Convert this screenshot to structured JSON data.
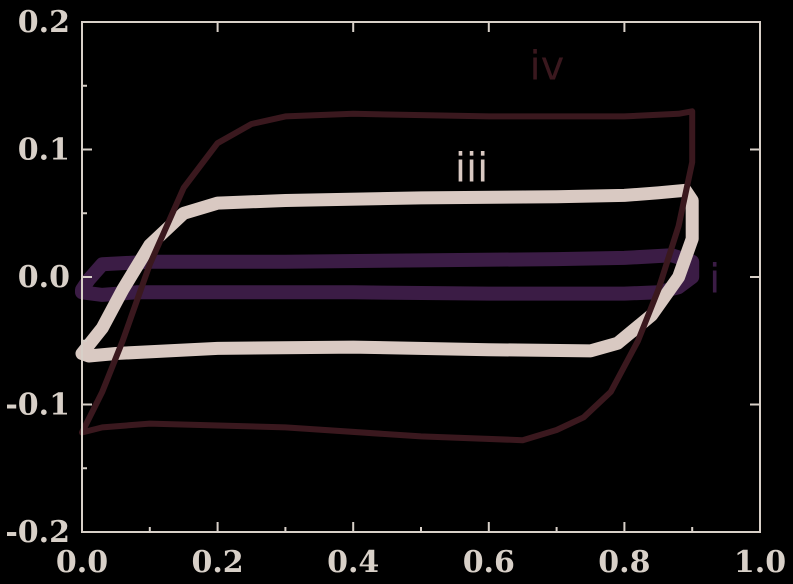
{
  "colors": {
    "background": "#000000",
    "axis": "#d8d0c8",
    "curve_i": "#3b1c45",
    "curve_ii": "#4a2060",
    "curve_iii": "#d9c9c2",
    "curve_iv": "#3a181e"
  },
  "chart_data": {
    "type": "line",
    "title": "",
    "xlabel": "",
    "ylabel": "",
    "xlim": [
      0.0,
      1.0
    ],
    "ylim": [
      -0.2,
      0.2
    ],
    "grid": false,
    "x_ticks": [
      "0.0",
      "0.2",
      "0.4",
      "0.6",
      "0.8",
      "1.0"
    ],
    "y_ticks": [
      "-0.2",
      "-0.1",
      "0.0",
      "0.1",
      "0.2"
    ],
    "annotations": [
      "i",
      "iii",
      "iv"
    ],
    "series": [
      {
        "name": "i",
        "color_key": "curve_i",
        "x": [
          0.0,
          0.01,
          0.03,
          0.1,
          0.3,
          0.5,
          0.7,
          0.8,
          0.87,
          0.9,
          0.9,
          0.88,
          0.85,
          0.8,
          0.6,
          0.4,
          0.2,
          0.08,
          0.03,
          0.0,
          0.0
        ],
        "y": [
          -0.01,
          -0.002,
          0.01,
          0.012,
          0.012,
          0.013,
          0.014,
          0.015,
          0.017,
          0.012,
          0.0,
          -0.008,
          -0.012,
          -0.013,
          -0.013,
          -0.012,
          -0.012,
          -0.012,
          -0.014,
          -0.012,
          -0.01
        ]
      },
      {
        "name": "iii",
        "color_key": "curve_iii",
        "x": [
          0.0,
          0.03,
          0.06,
          0.1,
          0.15,
          0.2,
          0.3,
          0.5,
          0.7,
          0.8,
          0.85,
          0.89,
          0.9,
          0.9,
          0.88,
          0.84,
          0.79,
          0.75,
          0.6,
          0.4,
          0.2,
          0.05,
          0.01,
          0.0
        ],
        "y": [
          -0.06,
          -0.04,
          -0.01,
          0.025,
          0.05,
          0.058,
          0.06,
          0.062,
          0.063,
          0.064,
          0.066,
          0.068,
          0.06,
          0.03,
          0.0,
          -0.03,
          -0.052,
          -0.058,
          -0.057,
          -0.055,
          -0.056,
          -0.06,
          -0.062,
          -0.06
        ]
      },
      {
        "name": "iv",
        "color_key": "curve_iv",
        "x": [
          0.0,
          0.03,
          0.06,
          0.1,
          0.15,
          0.2,
          0.25,
          0.3,
          0.4,
          0.6,
          0.8,
          0.88,
          0.9,
          0.9,
          0.88,
          0.85,
          0.82,
          0.78,
          0.74,
          0.7,
          0.65,
          0.5,
          0.3,
          0.1,
          0.03,
          0.0
        ],
        "y": [
          -0.122,
          -0.09,
          -0.05,
          0.01,
          0.07,
          0.105,
          0.12,
          0.126,
          0.128,
          0.126,
          0.126,
          0.128,
          0.13,
          0.09,
          0.04,
          -0.01,
          -0.05,
          -0.09,
          -0.11,
          -0.12,
          -0.128,
          -0.125,
          -0.118,
          -0.115,
          -0.118,
          -0.122
        ]
      }
    ]
  }
}
